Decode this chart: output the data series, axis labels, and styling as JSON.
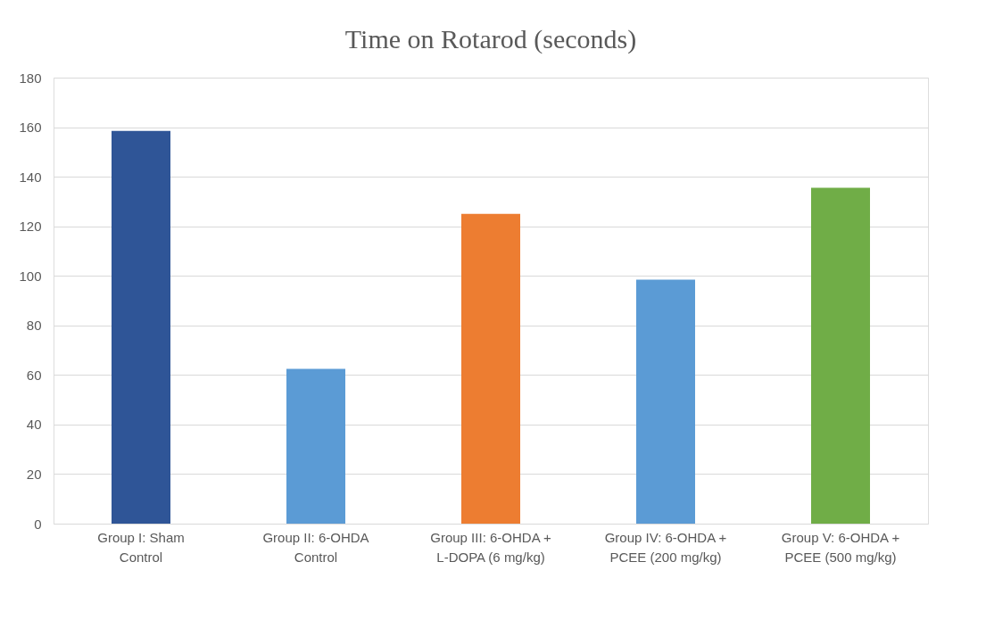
{
  "chart_data": {
    "type": "bar",
    "title": "Time on Rotarod (seconds)",
    "categories": [
      "Group I: Sham Control",
      "Group II: 6-OHDA Control",
      "Group III: 6-OHDA + L-DOPA (6 mg/kg)",
      "Group IV: 6-OHDA + PCEE (200 mg/kg)",
      "Group V: 6-OHDA + PCEE (500 mg/kg)"
    ],
    "values": [
      158.5,
      62.5,
      125,
      98.5,
      135.5
    ],
    "colors": [
      "#2f5597",
      "#5b9bd5",
      "#ed7d31",
      "#5b9bd5",
      "#70ad47"
    ],
    "ylim": [
      0,
      180
    ],
    "yticks": [
      0,
      20,
      40,
      60,
      80,
      100,
      120,
      140,
      160,
      180
    ],
    "grid": "y"
  }
}
